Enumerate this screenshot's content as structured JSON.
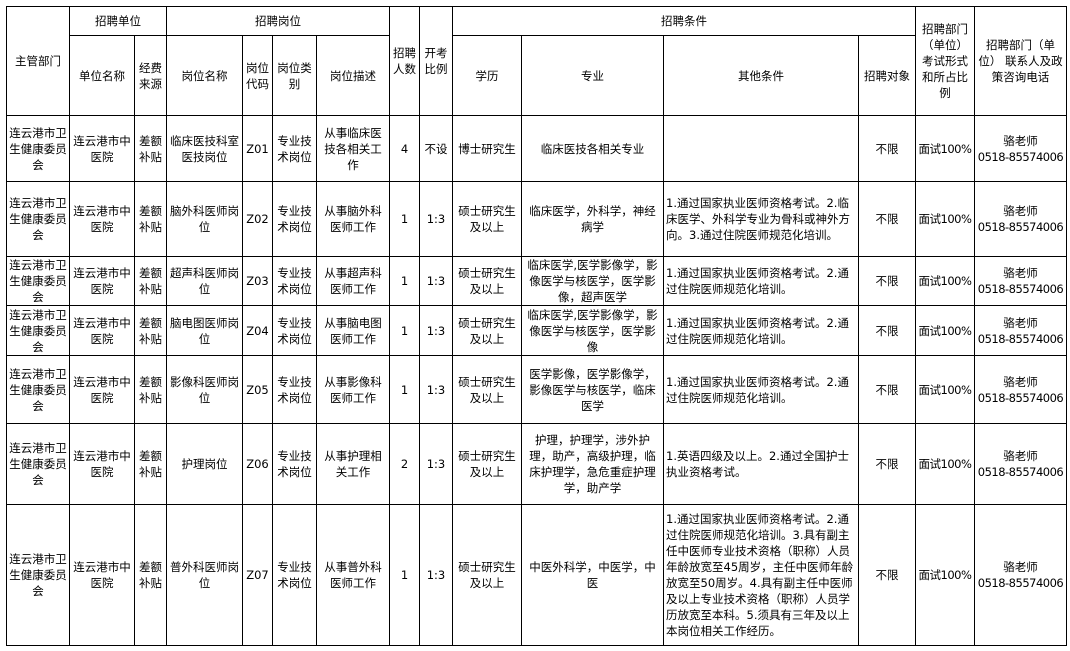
{
  "header": {
    "dept": "主管部门",
    "unit_group": "招聘单位",
    "post_group": "招聘岗位",
    "count": "招聘人数",
    "ratio": "开考比例",
    "cond_group": "招聘条件",
    "exam": "招聘部门（单位）考试形式和所占比例",
    "contact": "招聘部门（单位） 联系人及政策咨询电话",
    "unit_name": "单位名称",
    "funding": "经费来源",
    "post_name": "岗位名称",
    "post_code": "岗位代码",
    "post_type": "岗位类别",
    "post_desc": "岗位描述",
    "education": "学历",
    "major": "专业",
    "other": "其他条件",
    "target": "招聘对象"
  },
  "rows": [
    {
      "dept": "连云港市卫生健康委员会",
      "unit": "连云港市中医院",
      "funding": "差额补贴",
      "post": "临床医技科室医技岗位",
      "code": "Z01",
      "type": "专业技术岗位",
      "desc": "从事临床医技各相关工作",
      "count": "4",
      "ratio": "不设",
      "edu": "博士研究生",
      "major": "临床医技各相关专业",
      "other": "",
      "target": "不限",
      "exam": "面试100%",
      "contact_name": "骆老师",
      "contact_phone": "0518-85574006"
    },
    {
      "dept": "连云港市卫生健康委员会",
      "unit": "连云港市中医院",
      "funding": "差额补贴",
      "post": "脑外科医师岗位",
      "code": "Z02",
      "type": "专业技术岗位",
      "desc": "从事脑外科医师工作",
      "count": "1",
      "ratio": "1:3",
      "edu": "硕士研究生及以上",
      "major": "临床医学，外科学，神经病学",
      "other": "1.通过国家执业医师资格考试。2.临床医学、外科学专业为骨科或神外方向。3.通过住院医师规范化培训。",
      "target": "不限",
      "exam": "面试100%",
      "contact_name": "骆老师",
      "contact_phone": "0518-85574006"
    },
    {
      "dept": "连云港市卫生健康委员会",
      "unit": "连云港市中医院",
      "funding": "差额补贴",
      "post": "超声科医师岗位",
      "code": "Z03",
      "type": "专业技术岗位",
      "desc": "从事超声科医师工作",
      "count": "1",
      "ratio": "1:3",
      "edu": "硕士研究生及以上",
      "major": "临床医学,医学影像学，影像医学与核医学，医学影像，超声医学",
      "other": "1.通过国家执业医师资格考试。2.通过住院医师规范化培训。",
      "target": "不限",
      "exam": "面试100%",
      "contact_name": "骆老师",
      "contact_phone": "0518-85574006"
    },
    {
      "dept": "连云港市卫生健康委员会",
      "unit": "连云港市中医院",
      "funding": "差额补贴",
      "post": "脑电图医师岗位",
      "code": "Z04",
      "type": "专业技术岗位",
      "desc": "从事脑电图医师工作",
      "count": "1",
      "ratio": "1:3",
      "edu": "硕士研究生及以上",
      "major": "临床医学,医学影像学，影像医学与核医学，医学影像",
      "other": "1.通过国家执业医师资格考试。2.通过住院医师规范化培训。",
      "target": "不限",
      "exam": "面试100%",
      "contact_name": "骆老师",
      "contact_phone": "0518-85574006"
    },
    {
      "dept": "连云港市卫生健康委员会",
      "unit": "连云港市中医院",
      "funding": "差额补贴",
      "post": "影像科医师岗位",
      "code": "Z05",
      "type": "专业技术岗位",
      "desc": "从事影像科医师工作",
      "count": "1",
      "ratio": "1:3",
      "edu": "硕士研究生及以上",
      "major": "医学影像，医学影像学，影像医学与核医学，临床医学",
      "other": "1.通过国家执业医师资格考试。2.通过住院医师规范化培训。",
      "target": "不限",
      "exam": "面试100%",
      "contact_name": "骆老师",
      "contact_phone": "0518-85574006"
    },
    {
      "dept": "连云港市卫生健康委员会",
      "unit": "连云港市中医院",
      "funding": "差额补贴",
      "post": "护理岗位",
      "code": "Z06",
      "type": "专业技术岗位",
      "desc": "从事护理相关工作",
      "count": "2",
      "ratio": "1:3",
      "edu": "硕士研究生及以上",
      "major": "护理，护理学，涉外护理，助产，高级护理，临床护理学，急危重症护理学，助产学",
      "other": "1.英语四级及以上。2.通过全国护士执业资格考试。",
      "target": "不限",
      "exam": "面试100%",
      "contact_name": "骆老师",
      "contact_phone": "0518-85574006"
    },
    {
      "dept": "连云港市卫生健康委员会",
      "unit": "连云港市中医院",
      "funding": "差额补贴",
      "post": "普外科医师岗位",
      "code": "Z07",
      "type": "专业技术岗位",
      "desc": "从事普外科医师工作",
      "count": "1",
      "ratio": "1:3",
      "edu": "硕士研究生及以上",
      "major": "中医外科学，中医学，中医",
      "other": "1.通过国家执业医师资格考试。2.通过住院医师规范化培训。3.具有副主任中医师专业技术资格（职称）人员年龄放宽至45周岁，主任中医师年龄放宽至50周岁。4.具有副主任中医师及以上专业技术资格（职称）人员学历放宽至本科。5.须具有三年及以上本岗位相关工作经历。",
      "target": "不限",
      "exam": "面试100%",
      "contact_name": "骆老师",
      "contact_phone": "0518-85574006"
    }
  ]
}
